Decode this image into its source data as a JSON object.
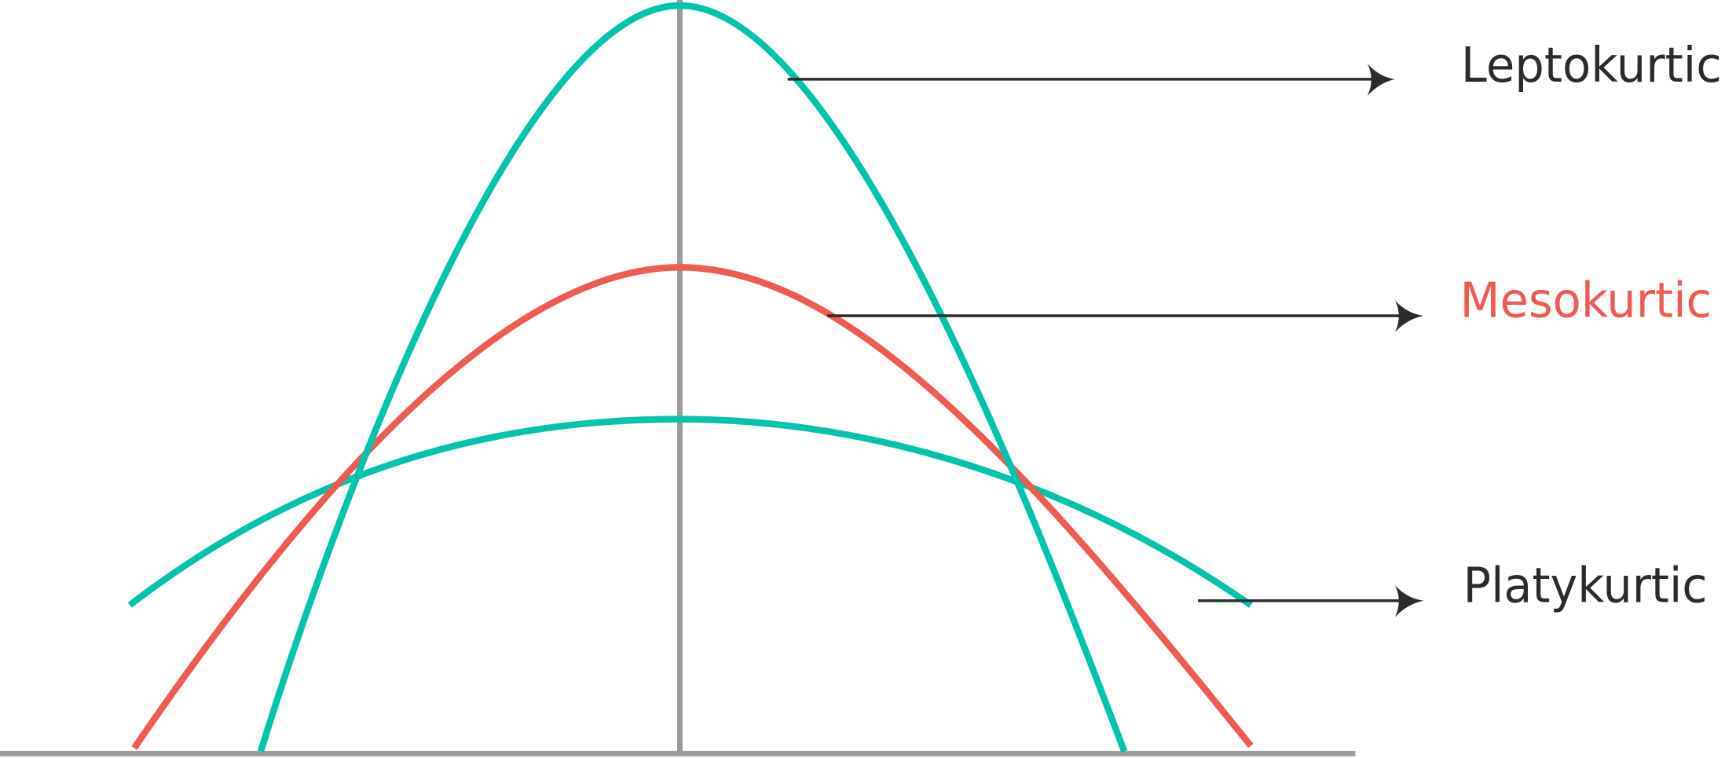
{
  "labels": {
    "leptokurtic": "Leptokurtic",
    "mesokurtic": "Mesokurtic",
    "platykurtic": "Platykurtic"
  }
}
